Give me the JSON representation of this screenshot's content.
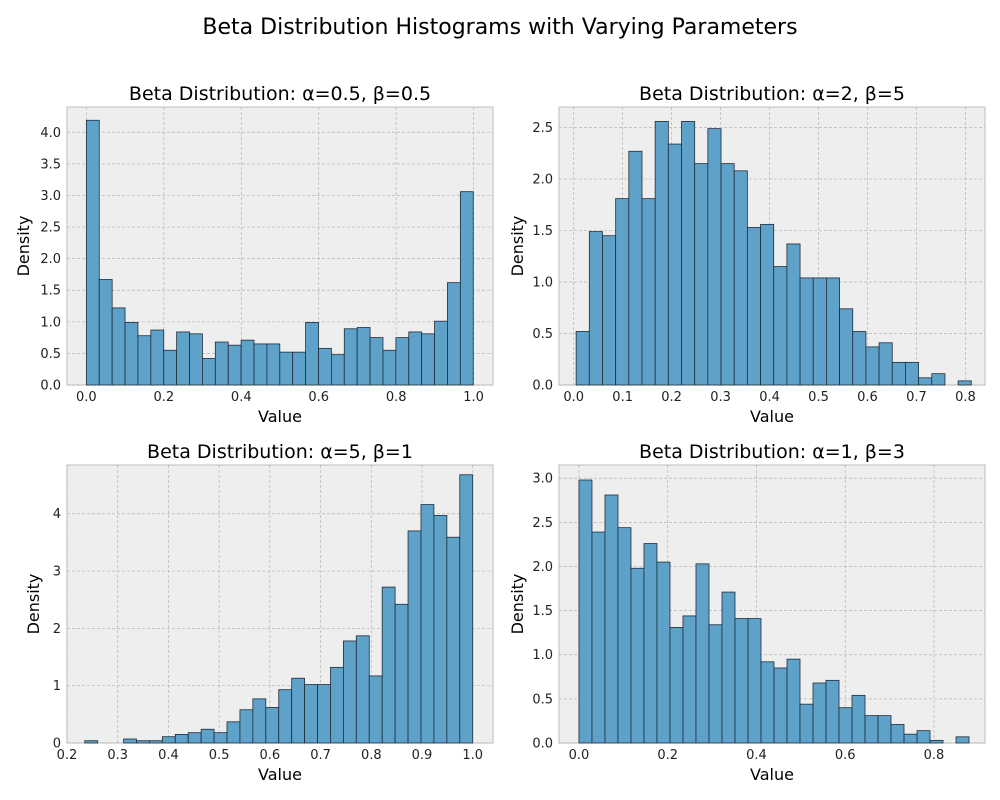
{
  "figure": {
    "title": "Beta Distribution Histograms with Varying Parameters",
    "colors": {
      "bar_fill": "#5fa2c9",
      "bar_edge": "#1f2d3a",
      "plot_bg": "#eeeeee",
      "grid": "#b5b5b5"
    }
  },
  "chart_data": [
    {
      "type": "bar",
      "title": "Beta Distribution: α=0.5, β=0.5",
      "xlabel": "Value",
      "ylabel": "Density",
      "xlim": [
        -0.05,
        1.05
      ],
      "ylim": [
        0,
        4.4
      ],
      "xticks": [
        0.0,
        0.2,
        0.4,
        0.6,
        0.8,
        1.0
      ],
      "xtick_labels": [
        "0.0",
        "0.2",
        "0.4",
        "0.6",
        "0.8",
        "1.0"
      ],
      "yticks": [
        0.0,
        0.5,
        1.0,
        1.5,
        2.0,
        2.5,
        3.0,
        3.5,
        4.0
      ],
      "ytick_labels": [
        "0.0",
        "0.5",
        "1.0",
        "1.5",
        "2.0",
        "2.5",
        "3.0",
        "3.5",
        "4.0"
      ],
      "grid": true,
      "bin_start": 0.0,
      "bin_width": 0.0333,
      "values": [
        4.19,
        1.67,
        1.22,
        0.99,
        0.78,
        0.87,
        0.55,
        0.84,
        0.81,
        0.42,
        0.68,
        0.63,
        0.71,
        0.65,
        0.65,
        0.52,
        0.52,
        0.99,
        0.58,
        0.48,
        0.89,
        0.91,
        0.75,
        0.55,
        0.75,
        0.84,
        0.81,
        1.01,
        1.62,
        3.06
      ]
    },
    {
      "type": "bar",
      "title": "Beta Distribution: α=2, β=5",
      "xlabel": "Value",
      "ylabel": "Density",
      "xlim": [
        -0.03,
        0.84
      ],
      "ylim": [
        0,
        2.7
      ],
      "xticks": [
        0.0,
        0.1,
        0.2,
        0.3,
        0.4,
        0.5,
        0.6,
        0.7,
        0.8
      ],
      "xtick_labels": [
        "0.0",
        "0.1",
        "0.2",
        "0.3",
        "0.4",
        "0.5",
        "0.6",
        "0.7",
        "0.8"
      ],
      "yticks": [
        0.0,
        0.5,
        1.0,
        1.5,
        2.0,
        2.5
      ],
      "ytick_labels": [
        "0.0",
        "0.5",
        "1.0",
        "1.5",
        "2.0",
        "2.5"
      ],
      "grid": true,
      "bin_start": 0.005,
      "bin_width": 0.0269,
      "values": [
        0.52,
        1.49,
        1.45,
        1.81,
        2.27,
        1.81,
        2.56,
        2.34,
        2.56,
        2.15,
        2.49,
        2.15,
        2.08,
        1.53,
        1.56,
        1.15,
        1.37,
        1.04,
        1.04,
        1.04,
        0.74,
        0.52,
        0.37,
        0.41,
        0.22,
        0.22,
        0.07,
        0.11,
        0.0,
        0.04
      ]
    },
    {
      "type": "bar",
      "title": "Beta Distribution: α=5, β=1",
      "xlabel": "Value",
      "ylabel": "Density",
      "xlim": [
        0.2,
        1.04
      ],
      "ylim": [
        0,
        4.85
      ],
      "xticks": [
        0.2,
        0.3,
        0.4,
        0.5,
        0.6,
        0.7,
        0.8,
        0.9,
        1.0
      ],
      "xtick_labels": [
        "0.2",
        "0.3",
        "0.4",
        "0.5",
        "0.6",
        "0.7",
        "0.8",
        "0.9",
        "1.0"
      ],
      "yticks": [
        0,
        1,
        2,
        3,
        4
      ],
      "ytick_labels": [
        "0",
        "1",
        "2",
        "3",
        "4"
      ],
      "grid": true,
      "bin_start": 0.235,
      "bin_width": 0.0255,
      "values": [
        0.04,
        0.0,
        0.0,
        0.07,
        0.04,
        0.04,
        0.11,
        0.15,
        0.18,
        0.24,
        0.18,
        0.37,
        0.58,
        0.77,
        0.62,
        0.93,
        1.13,
        1.02,
        1.02,
        1.32,
        1.78,
        1.87,
        1.17,
        2.72,
        2.42,
        3.7,
        4.16,
        3.97,
        3.59,
        4.68
      ]
    },
    {
      "type": "bar",
      "title": "Beta Distribution: α=1, β=3",
      "xlabel": "Value",
      "ylabel": "Density",
      "xlim": [
        -0.045,
        0.915
      ],
      "ylim": [
        0,
        3.15
      ],
      "xticks": [
        0.0,
        0.2,
        0.4,
        0.6,
        0.8
      ],
      "xtick_labels": [
        "0.0",
        "0.2",
        "0.4",
        "0.6",
        "0.8"
      ],
      "yticks": [
        0.0,
        0.5,
        1.0,
        1.5,
        2.0,
        2.5,
        3.0
      ],
      "ytick_labels": [
        "0.0",
        "0.5",
        "1.0",
        "1.5",
        "2.0",
        "2.5",
        "3.0"
      ],
      "grid": true,
      "bin_start": 0.0,
      "bin_width": 0.0293,
      "values": [
        2.98,
        2.39,
        2.81,
        2.44,
        1.98,
        2.26,
        2.05,
        1.31,
        1.44,
        2.03,
        1.34,
        1.71,
        1.41,
        1.41,
        0.92,
        0.85,
        0.95,
        0.44,
        0.68,
        0.71,
        0.4,
        0.54,
        0.31,
        0.31,
        0.21,
        0.1,
        0.14,
        0.03,
        0.0,
        0.07
      ]
    }
  ]
}
